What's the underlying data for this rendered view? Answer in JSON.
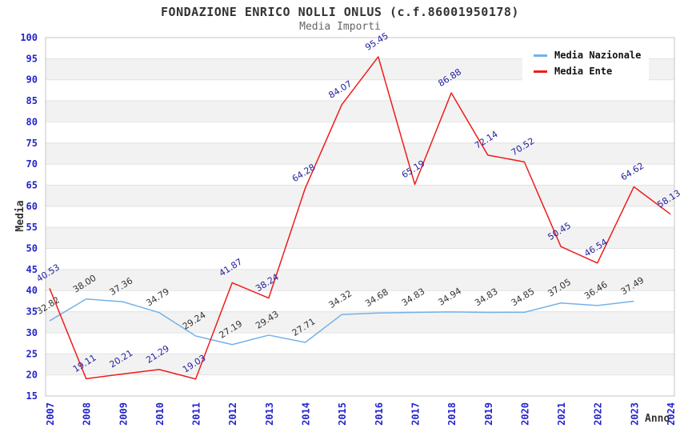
{
  "header": {
    "title": "FONDAZIONE ENRICO NOLLI ONLUS (c.f.86001950178)",
    "subtitle": "Media Importi"
  },
  "chart_data": {
    "type": "line",
    "title": "FONDAZIONE ENRICO NOLLI ONLUS (c.f.86001950178)",
    "subtitle": "Media Importi",
    "xlabel": "Anno",
    "ylabel": "Media",
    "x": [
      2007,
      2008,
      2009,
      2010,
      2011,
      2012,
      2013,
      2014,
      2015,
      2016,
      2017,
      2018,
      2019,
      2020,
      2021,
      2022,
      2023,
      2024
    ],
    "series": [
      {
        "name": "Media Nazionale",
        "color": "#74b2e8",
        "label_color": "#333333",
        "values": [
          32.82,
          38.0,
          37.36,
          34.79,
          29.24,
          27.19,
          29.43,
          27.71,
          34.32,
          34.68,
          34.83,
          34.94,
          34.83,
          34.85,
          37.05,
          36.46,
          37.49,
          null
        ]
      },
      {
        "name": "Media Ente",
        "color": "#ee1c1c",
        "label_color": "#22229e",
        "values": [
          40.53,
          19.11,
          20.21,
          21.29,
          19.03,
          41.87,
          38.24,
          64.28,
          84.07,
          95.45,
          65.19,
          86.88,
          72.14,
          70.52,
          50.45,
          46.54,
          64.62,
          58.13
        ]
      }
    ],
    "ylim": [
      15,
      100
    ],
    "ytick_step": 5,
    "grid": true,
    "band_fill": "#f2f2f2",
    "gridline_color": "#e2e2e2",
    "plot_border_color": "#c6c6c6",
    "axis_tick_color": "#2424cc",
    "label_rotation_deg": -32,
    "legend_position": "top-right"
  }
}
